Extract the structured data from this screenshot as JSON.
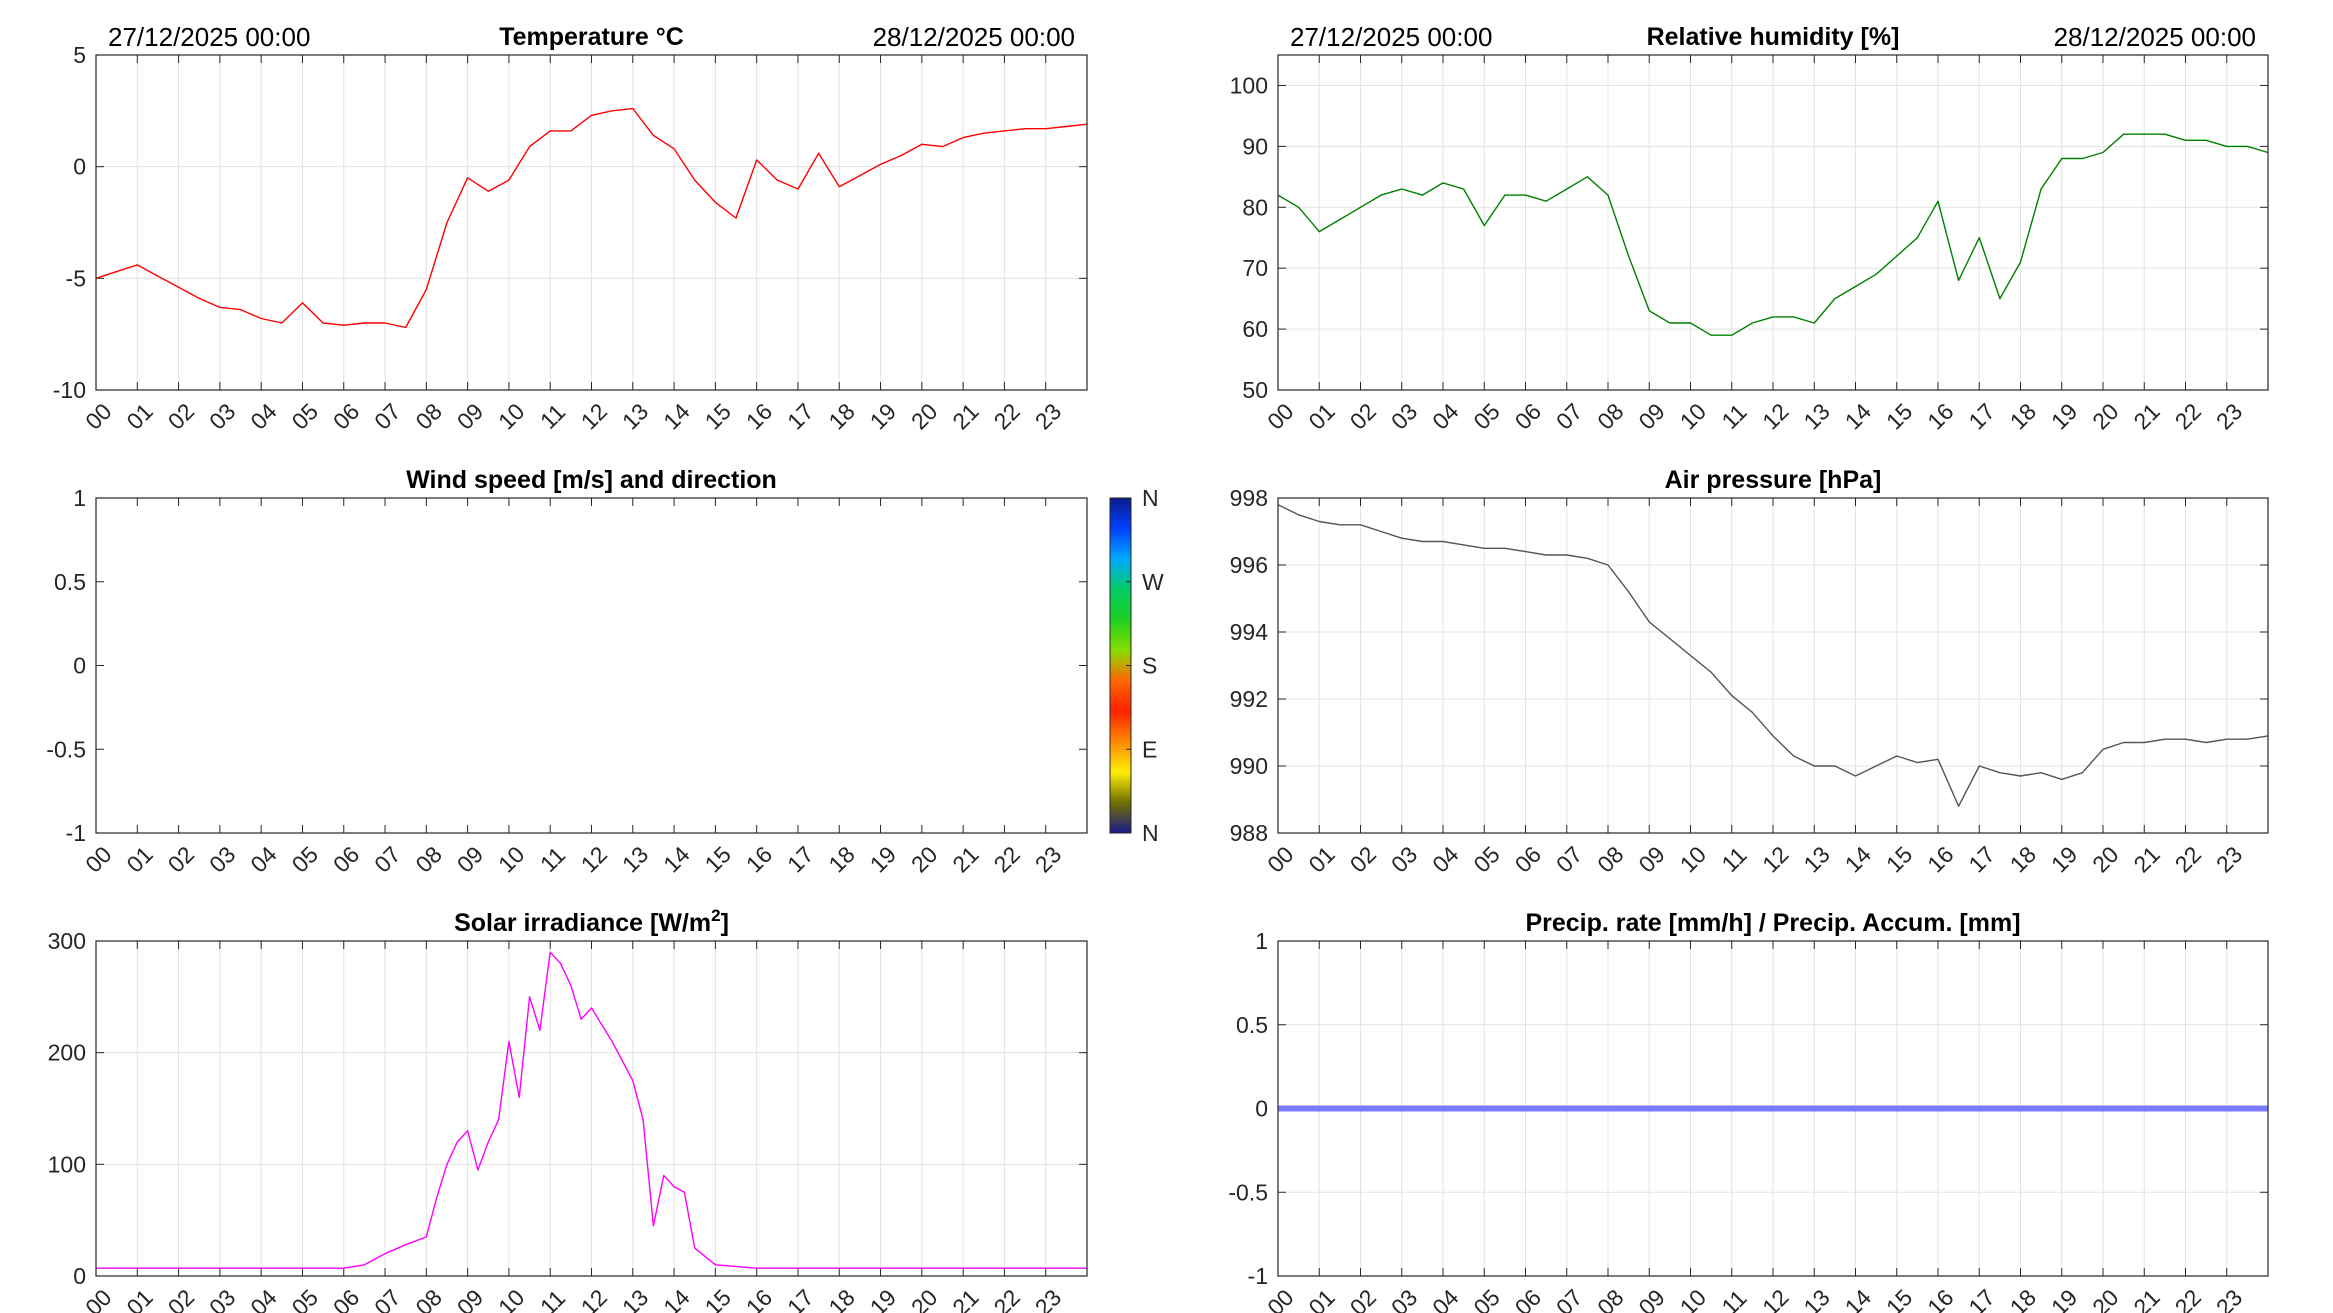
{
  "chart_data": [
    {
      "type": "line",
      "title": "Temperature °C",
      "date_left": "27/12/2025 00:00",
      "date_right": "28/12/2025 00:00",
      "ylim": [
        -10,
        5
      ],
      "yticks": [
        5,
        0,
        -5,
        -10
      ],
      "grid": true,
      "color": "#ff0000",
      "x_hours": [
        0,
        0.5,
        1,
        1.5,
        2,
        2.5,
        3,
        3.5,
        4,
        4.5,
        5,
        5.5,
        6,
        6.5,
        7,
        7.5,
        8,
        8.5,
        9,
        9.5,
        10,
        10.5,
        11,
        11.5,
        12,
        12.5,
        13,
        13.5,
        14,
        14.5,
        15,
        15.5,
        16,
        16.5,
        17,
        17.5,
        18,
        18.5,
        19,
        19.5,
        20,
        20.5,
        21,
        21.5,
        22,
        22.5,
        23,
        23.5,
        24
      ],
      "values": [
        -5.0,
        -4.7,
        -4.4,
        -4.9,
        -5.4,
        -5.9,
        -6.3,
        -6.4,
        -6.8,
        -7.0,
        -6.1,
        -7.0,
        -7.1,
        -7.0,
        -7.0,
        -7.2,
        -5.5,
        -2.5,
        -0.5,
        -1.1,
        -0.6,
        0.9,
        1.6,
        1.6,
        2.3,
        2.5,
        2.6,
        1.4,
        0.8,
        -0.6,
        -1.6,
        -2.3,
        0.3,
        -0.6,
        -1.0,
        0.6,
        -0.9,
        -0.4,
        0.1,
        0.5,
        1.0,
        0.9,
        1.3,
        1.5,
        1.6,
        1.7,
        1.7,
        1.8,
        1.9
      ]
    },
    {
      "type": "line",
      "title": "Relative humidity [%]",
      "date_left": "27/12/2025 00:00",
      "date_right": "28/12/2025 00:00",
      "ylim": [
        50,
        105
      ],
      "yticks": [
        100,
        90,
        80,
        70,
        60,
        50
      ],
      "grid": true,
      "color": "#008000",
      "x_hours": [
        0,
        0.5,
        1,
        1.5,
        2,
        2.5,
        3,
        3.5,
        4,
        4.5,
        5,
        5.5,
        6,
        6.5,
        7,
        7.5,
        8,
        8.5,
        9,
        9.5,
        10,
        10.5,
        11,
        11.5,
        12,
        12.5,
        13,
        13.5,
        14,
        14.5,
        15,
        15.5,
        16,
        16.5,
        17,
        17.5,
        18,
        18.5,
        19,
        19.5,
        20,
        20.5,
        21,
        21.5,
        22,
        22.5,
        23,
        23.5,
        24
      ],
      "values": [
        82,
        80,
        76,
        78,
        80,
        82,
        83,
        82,
        84,
        83,
        77,
        82,
        82,
        81,
        83,
        85,
        82,
        72,
        63,
        61,
        61,
        59,
        59,
        61,
        62,
        62,
        61,
        65,
        67,
        69,
        72,
        75,
        81,
        68,
        75,
        65,
        71,
        83,
        88,
        88,
        89,
        92,
        92,
        92,
        91,
        91,
        90,
        90,
        89
      ]
    },
    {
      "type": "line",
      "title": "Wind speed [m/s] and direction",
      "ylim": [
        -1,
        1
      ],
      "yticks": [
        1,
        0.5,
        0,
        -0.5,
        -1
      ],
      "grid": false,
      "values": [],
      "colorbar": {
        "labels": [
          "N",
          "W",
          "S",
          "E",
          "N"
        ],
        "colors": [
          "#0a1a8a",
          "#0040ff",
          "#00aaff",
          "#00cc66",
          "#20d020",
          "#88dd00",
          "#ff6600",
          "#ff2200",
          "#ff8800",
          "#ffee00",
          "#707000",
          "#1a1a8a"
        ]
      }
    },
    {
      "type": "line",
      "title": "Air pressure [hPa]",
      "ylim": [
        988,
        998
      ],
      "yticks": [
        998,
        996,
        994,
        992,
        990,
        988
      ],
      "grid": true,
      "color": "#555555",
      "x_hours": [
        0,
        0.5,
        1,
        1.5,
        2,
        2.5,
        3,
        3.5,
        4,
        4.5,
        5,
        5.5,
        6,
        6.5,
        7,
        7.5,
        8,
        8.5,
        9,
        9.5,
        10,
        10.5,
        11,
        11.5,
        12,
        12.5,
        13,
        13.5,
        14,
        14.5,
        15,
        15.5,
        16,
        16.5,
        17,
        17.5,
        18,
        18.5,
        19,
        19.5,
        20,
        20.5,
        21,
        21.5,
        22,
        22.5,
        23,
        23.5,
        24
      ],
      "values": [
        997.8,
        997.5,
        997.3,
        997.2,
        997.2,
        997.0,
        996.8,
        996.7,
        996.7,
        996.6,
        996.5,
        996.5,
        996.4,
        996.3,
        996.3,
        996.2,
        996.0,
        995.2,
        994.3,
        993.8,
        993.3,
        992.8,
        992.1,
        991.6,
        990.9,
        990.3,
        990.0,
        990.0,
        989.7,
        990.0,
        990.3,
        990.1,
        990.2,
        988.8,
        990.0,
        989.8,
        989.7,
        989.8,
        989.6,
        989.8,
        990.5,
        990.7,
        990.7,
        990.8,
        990.8,
        990.7,
        990.8,
        990.8,
        990.9
      ]
    },
    {
      "type": "line",
      "title": "Solar irradiance [W/m",
      "title_superscript": "2",
      "title_suffix": "]",
      "ylim": [
        0,
        300
      ],
      "yticks": [
        300,
        200,
        100,
        0
      ],
      "grid": true,
      "color": "#ff00ff",
      "x_hours": [
        0,
        1,
        2,
        3,
        4,
        5,
        6,
        6.5,
        7,
        7.5,
        8,
        8.25,
        8.5,
        8.75,
        9,
        9.25,
        9.5,
        9.75,
        10,
        10.25,
        10.5,
        10.75,
        11,
        11.25,
        11.5,
        11.75,
        12,
        12.5,
        13,
        13.25,
        13.5,
        13.75,
        14,
        14.25,
        14.5,
        15,
        16,
        17,
        18,
        19,
        20,
        21,
        22,
        23,
        24
      ],
      "values": [
        7,
        7,
        7,
        7,
        7,
        7,
        7,
        10,
        20,
        28,
        35,
        70,
        100,
        120,
        130,
        95,
        120,
        140,
        210,
        160,
        250,
        220,
        290,
        280,
        260,
        230,
        240,
        210,
        175,
        140,
        45,
        90,
        80,
        75,
        25,
        10,
        7,
        7,
        7,
        7,
        7,
        7,
        7,
        7,
        7
      ]
    },
    {
      "type": "line",
      "title": "Precip. rate [mm/h] / Precip. Accum. [mm]",
      "ylim": [
        -1,
        1
      ],
      "yticks": [
        1,
        0.5,
        0,
        -0.5,
        -1
      ],
      "grid": true,
      "color": "#7b7bff",
      "x_hours": [
        0,
        24
      ],
      "values": [
        0,
        0
      ]
    }
  ],
  "x_tick_labels": [
    "00",
    "01",
    "02",
    "03",
    "04",
    "05",
    "06",
    "07",
    "08",
    "09",
    "10",
    "11",
    "12",
    "13",
    "14",
    "15",
    "16",
    "17",
    "18",
    "19",
    "20",
    "21",
    "22",
    "23"
  ]
}
